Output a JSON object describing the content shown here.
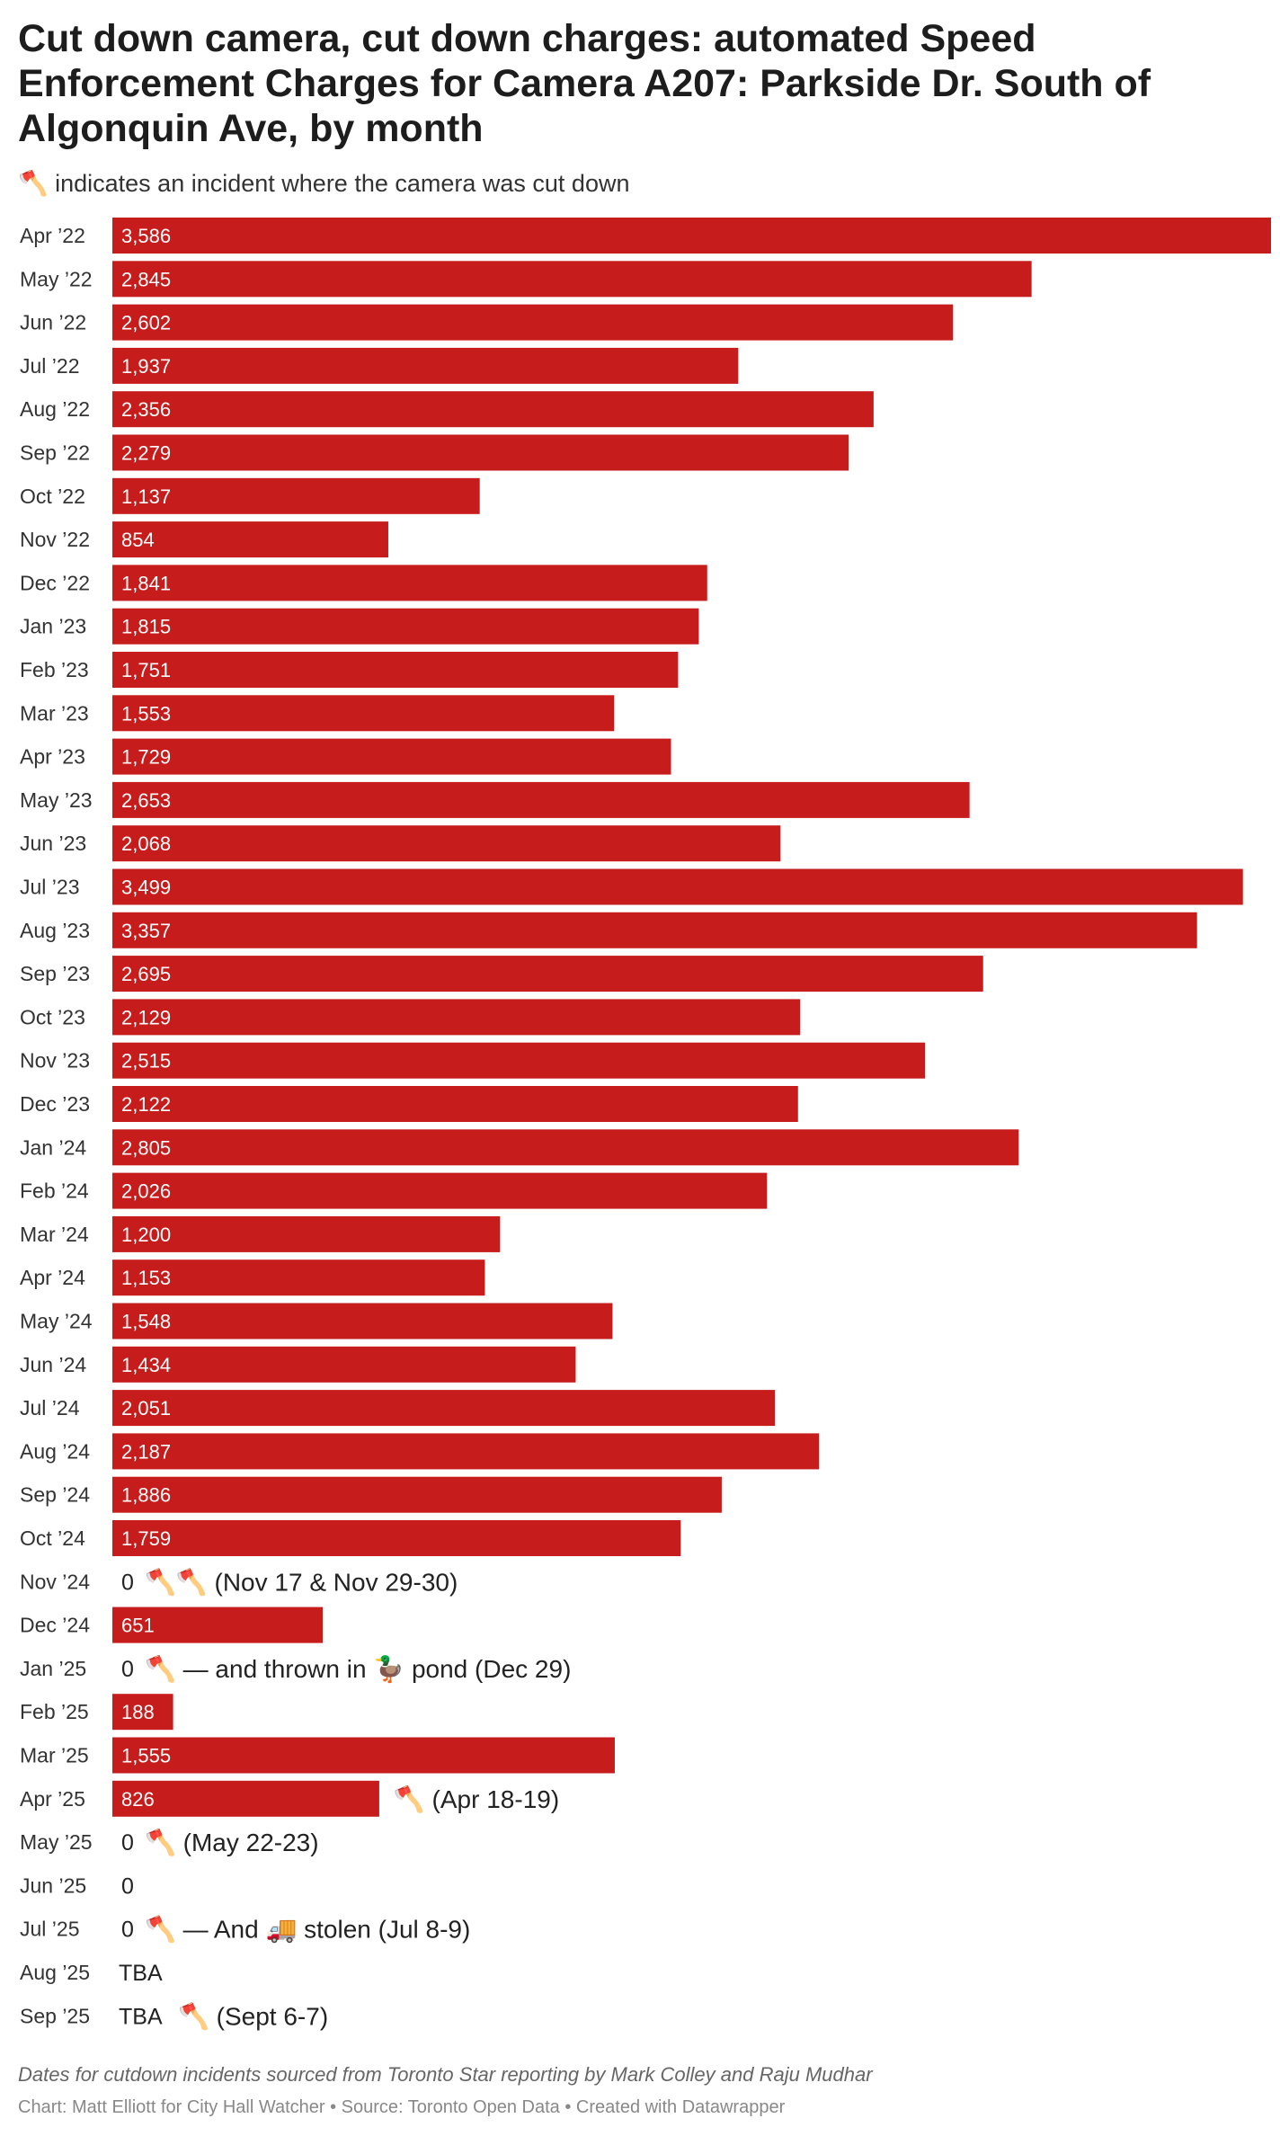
{
  "chart_data": {
    "type": "bar",
    "orientation": "horizontal",
    "title": "Cut down camera, cut down charges: automated Speed Enforcement Charges for Camera A207: Parkside Dr. South of Algonquin Ave, by month",
    "subtitle": "🪓 indicates an incident where the camera was cut down",
    "bar_color": "#c71c1c",
    "xlim": [
      0,
      3586
    ],
    "categories": [
      "Apr ’22",
      "May ’22",
      "Jun ’22",
      "Jul ’22",
      "Aug ’22",
      "Sep ’22",
      "Oct ’22",
      "Nov ’22",
      "Dec ’22",
      "Jan ’23",
      "Feb ’23",
      "Mar ’23",
      "Apr ’23",
      "May ’23",
      "Jun ’23",
      "Jul ’23",
      "Aug ’23",
      "Sep ’23",
      "Oct ’23",
      "Nov ’23",
      "Dec ’23",
      "Jan ’24",
      "Feb ’24",
      "Mar ’24",
      "Apr ’24",
      "May ’24",
      "Jun ’24",
      "Jul ’24",
      "Aug ’24",
      "Sep ’24",
      "Oct ’24",
      "Nov ’24",
      "Dec ’24",
      "Jan ’25",
      "Feb ’25",
      "Mar ’25",
      "Apr ’25",
      "May ’25",
      "Jun ’25",
      "Jul ’25",
      "Aug ’25",
      "Sep ’25"
    ],
    "values": [
      3586,
      2845,
      2602,
      1937,
      2356,
      2279,
      1137,
      854,
      1841,
      1815,
      1751,
      1553,
      1729,
      2653,
      2068,
      3499,
      3357,
      2695,
      2129,
      2515,
      2122,
      2805,
      2026,
      1200,
      1153,
      1548,
      1434,
      2051,
      2187,
      1886,
      1759,
      0,
      651,
      0,
      188,
      1555,
      826,
      0,
      0,
      0,
      null,
      null
    ],
    "value_labels": [
      "3,586",
      "2,845",
      "2,602",
      "1,937",
      "2,356",
      "2,279",
      "1,137",
      "854",
      "1,841",
      "1,815",
      "1,751",
      "1,553",
      "1,729",
      "2,653",
      "2,068",
      "3,499",
      "3,357",
      "2,695",
      "2,129",
      "2,515",
      "2,122",
      "2,805",
      "2,026",
      "1,200",
      "1,153",
      "1,548",
      "1,434",
      "2,051",
      "2,187",
      "1,886",
      "1,759",
      "0",
      "651",
      "0",
      "188",
      "1,555",
      "826",
      "0",
      "0",
      "0",
      "TBA",
      "TBA"
    ],
    "annotations": {
      "31": "🪓🪓 (Nov 17 & Nov 29-30)",
      "33": "🪓 — and thrown in 🦆 pond (Dec 29)",
      "36": "🪓 (Apr 18-19)",
      "37": "🪓 (May 22-23)",
      "39": "🪓 — And 🚚 stolen (Jul 8-9)",
      "41": "🪓 (Sept 6-7)"
    }
  },
  "footer": {
    "note": "Dates for cutdown incidents sourced from Toronto Star reporting by Mark Colley and Raju Mudhar",
    "credit": "Chart: Matt Elliott for City Hall Watcher • Source: Toronto Open Data • Created with Datawrapper"
  }
}
